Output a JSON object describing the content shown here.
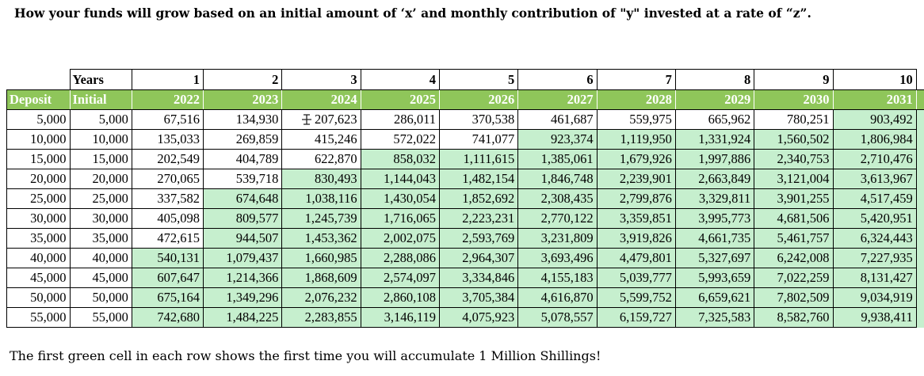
{
  "title": "How your funds will grow based on an initial amount of ‘x’ and monthly contribution of \"y\" invested at a rate of “z”.",
  "footnote": "The first green cell in each row shows the first time you will accumulate 1 Million Shillings!",
  "table": {
    "years_label": "Years",
    "years": [
      "1",
      "2",
      "3",
      "4",
      "5",
      "6",
      "7",
      "8",
      "9",
      "10"
    ],
    "deposit_header": "Deposit",
    "initial_header": "Initial",
    "calendar_years": [
      "2022",
      "2023",
      "2024",
      "2025",
      "2026",
      "2027",
      "2028",
      "2029",
      "2030",
      "2031"
    ],
    "highlight_color": "#c6efce",
    "header_color": "#8fc65a",
    "rows": [
      {
        "deposit": "5,000",
        "initial": "5,000",
        "values": [
          "67,516",
          "134,930",
          "207,623",
          "286,011",
          "370,538",
          "461,687",
          "559,975",
          "665,962",
          "780,251",
          "903,492"
        ],
        "first_green": 10
      },
      {
        "deposit": "10,000",
        "initial": "10,000",
        "values": [
          "135,033",
          "269,859",
          "415,246",
          "572,022",
          "741,077",
          "923,374",
          "1,119,950",
          "1,331,924",
          "1,560,502",
          "1,806,984"
        ],
        "first_green": 6
      },
      {
        "deposit": "15,000",
        "initial": "15,000",
        "values": [
          "202,549",
          "404,789",
          "622,870",
          "858,032",
          "1,111,615",
          "1,385,061",
          "1,679,926",
          "1,997,886",
          "2,340,753",
          "2,710,476"
        ],
        "first_green": 4
      },
      {
        "deposit": "20,000",
        "initial": "20,000",
        "values": [
          "270,065",
          "539,718",
          "830,493",
          "1,144,043",
          "1,482,154",
          "1,846,748",
          "2,239,901",
          "2,663,849",
          "3,121,004",
          "3,613,967"
        ],
        "first_green": 3
      },
      {
        "deposit": "25,000",
        "initial": "25,000",
        "values": [
          "337,582",
          "674,648",
          "1,038,116",
          "1,430,054",
          "1,852,692",
          "2,308,435",
          "2,799,876",
          "3,329,811",
          "3,901,255",
          "4,517,459"
        ],
        "first_green": 2
      },
      {
        "deposit": "30,000",
        "initial": "30,000",
        "values": [
          "405,098",
          "809,577",
          "1,245,739",
          "1,716,065",
          "2,223,231",
          "2,770,122",
          "3,359,851",
          "3,995,773",
          "4,681,506",
          "5,420,951"
        ],
        "first_green": 2
      },
      {
        "deposit": "35,000",
        "initial": "35,000",
        "values": [
          "472,615",
          "944,507",
          "1,453,362",
          "2,002,075",
          "2,593,769",
          "3,231,809",
          "3,919,826",
          "4,661,735",
          "5,461,757",
          "6,324,443"
        ],
        "first_green": 2
      },
      {
        "deposit": "40,000",
        "initial": "40,000",
        "values": [
          "540,131",
          "1,079,437",
          "1,660,985",
          "2,288,086",
          "2,964,307",
          "3,693,496",
          "4,479,801",
          "5,327,697",
          "6,242,008",
          "7,227,935"
        ],
        "first_green": 1
      },
      {
        "deposit": "45,000",
        "initial": "45,000",
        "values": [
          "607,647",
          "1,214,366",
          "1,868,609",
          "2,574,097",
          "3,334,846",
          "4,155,183",
          "5,039,777",
          "5,993,659",
          "7,022,259",
          "8,131,427"
        ],
        "first_green": 1
      },
      {
        "deposit": "50,000",
        "initial": "50,000",
        "values": [
          "675,164",
          "1,349,296",
          "2,076,232",
          "2,860,108",
          "3,705,384",
          "4,616,870",
          "5,599,752",
          "6,659,621",
          "7,802,509",
          "9,034,919"
        ],
        "first_green": 1
      },
      {
        "deposit": "55,000",
        "initial": "55,000",
        "values": [
          "742,680",
          "1,484,225",
          "2,283,855",
          "3,146,119",
          "4,075,923",
          "5,078,557",
          "6,159,727",
          "7,325,583",
          "8,582,760",
          "9,938,411"
        ],
        "first_green": 1
      }
    ]
  }
}
